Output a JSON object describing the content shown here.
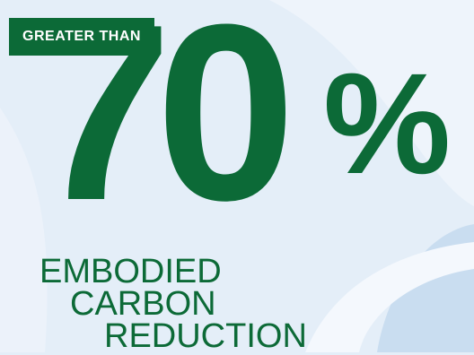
{
  "badge": {
    "label": "GREATER THAN"
  },
  "headline": {
    "value": "70",
    "unit": "%"
  },
  "caption": {
    "lines": [
      "EMBODIED",
      "CARBON",
      "REDUCTION"
    ]
  },
  "colors": {
    "brand_green": "#0c6a37",
    "background": "#e4eef8",
    "swirl_light": "#f3f7fc",
    "swirl_blue": "#c9ddf0"
  }
}
